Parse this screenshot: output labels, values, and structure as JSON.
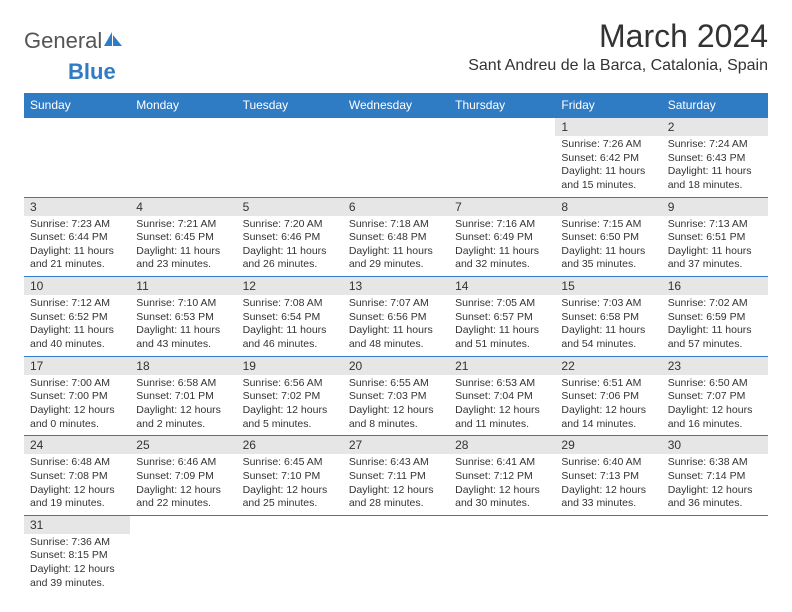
{
  "brand": {
    "part1": "General",
    "part2": "Blue"
  },
  "title": "March 2024",
  "location": "Sant Andreu de la Barca, Catalonia, Spain",
  "colors": {
    "header_bg": "#2f7bc4",
    "header_text": "#ffffff",
    "daynum_bg": "#e6e6e6",
    "border": "#2f7bc4",
    "text": "#333333",
    "page_bg": "#ffffff"
  },
  "weekdays": [
    "Sunday",
    "Monday",
    "Tuesday",
    "Wednesday",
    "Thursday",
    "Friday",
    "Saturday"
  ],
  "grid": [
    [
      null,
      null,
      null,
      null,
      null,
      {
        "n": "1",
        "sr": "Sunrise: 7:26 AM",
        "ss": "Sunset: 6:42 PM",
        "dl": "Daylight: 11 hours and 15 minutes."
      },
      {
        "n": "2",
        "sr": "Sunrise: 7:24 AM",
        "ss": "Sunset: 6:43 PM",
        "dl": "Daylight: 11 hours and 18 minutes."
      }
    ],
    [
      {
        "n": "3",
        "sr": "Sunrise: 7:23 AM",
        "ss": "Sunset: 6:44 PM",
        "dl": "Daylight: 11 hours and 21 minutes."
      },
      {
        "n": "4",
        "sr": "Sunrise: 7:21 AM",
        "ss": "Sunset: 6:45 PM",
        "dl": "Daylight: 11 hours and 23 minutes."
      },
      {
        "n": "5",
        "sr": "Sunrise: 7:20 AM",
        "ss": "Sunset: 6:46 PM",
        "dl": "Daylight: 11 hours and 26 minutes."
      },
      {
        "n": "6",
        "sr": "Sunrise: 7:18 AM",
        "ss": "Sunset: 6:48 PM",
        "dl": "Daylight: 11 hours and 29 minutes."
      },
      {
        "n": "7",
        "sr": "Sunrise: 7:16 AM",
        "ss": "Sunset: 6:49 PM",
        "dl": "Daylight: 11 hours and 32 minutes."
      },
      {
        "n": "8",
        "sr": "Sunrise: 7:15 AM",
        "ss": "Sunset: 6:50 PM",
        "dl": "Daylight: 11 hours and 35 minutes."
      },
      {
        "n": "9",
        "sr": "Sunrise: 7:13 AM",
        "ss": "Sunset: 6:51 PM",
        "dl": "Daylight: 11 hours and 37 minutes."
      }
    ],
    [
      {
        "n": "10",
        "sr": "Sunrise: 7:12 AM",
        "ss": "Sunset: 6:52 PM",
        "dl": "Daylight: 11 hours and 40 minutes."
      },
      {
        "n": "11",
        "sr": "Sunrise: 7:10 AM",
        "ss": "Sunset: 6:53 PM",
        "dl": "Daylight: 11 hours and 43 minutes."
      },
      {
        "n": "12",
        "sr": "Sunrise: 7:08 AM",
        "ss": "Sunset: 6:54 PM",
        "dl": "Daylight: 11 hours and 46 minutes."
      },
      {
        "n": "13",
        "sr": "Sunrise: 7:07 AM",
        "ss": "Sunset: 6:56 PM",
        "dl": "Daylight: 11 hours and 48 minutes."
      },
      {
        "n": "14",
        "sr": "Sunrise: 7:05 AM",
        "ss": "Sunset: 6:57 PM",
        "dl": "Daylight: 11 hours and 51 minutes."
      },
      {
        "n": "15",
        "sr": "Sunrise: 7:03 AM",
        "ss": "Sunset: 6:58 PM",
        "dl": "Daylight: 11 hours and 54 minutes."
      },
      {
        "n": "16",
        "sr": "Sunrise: 7:02 AM",
        "ss": "Sunset: 6:59 PM",
        "dl": "Daylight: 11 hours and 57 minutes."
      }
    ],
    [
      {
        "n": "17",
        "sr": "Sunrise: 7:00 AM",
        "ss": "Sunset: 7:00 PM",
        "dl": "Daylight: 12 hours and 0 minutes."
      },
      {
        "n": "18",
        "sr": "Sunrise: 6:58 AM",
        "ss": "Sunset: 7:01 PM",
        "dl": "Daylight: 12 hours and 2 minutes."
      },
      {
        "n": "19",
        "sr": "Sunrise: 6:56 AM",
        "ss": "Sunset: 7:02 PM",
        "dl": "Daylight: 12 hours and 5 minutes."
      },
      {
        "n": "20",
        "sr": "Sunrise: 6:55 AM",
        "ss": "Sunset: 7:03 PM",
        "dl": "Daylight: 12 hours and 8 minutes."
      },
      {
        "n": "21",
        "sr": "Sunrise: 6:53 AM",
        "ss": "Sunset: 7:04 PM",
        "dl": "Daylight: 12 hours and 11 minutes."
      },
      {
        "n": "22",
        "sr": "Sunrise: 6:51 AM",
        "ss": "Sunset: 7:06 PM",
        "dl": "Daylight: 12 hours and 14 minutes."
      },
      {
        "n": "23",
        "sr": "Sunrise: 6:50 AM",
        "ss": "Sunset: 7:07 PM",
        "dl": "Daylight: 12 hours and 16 minutes."
      }
    ],
    [
      {
        "n": "24",
        "sr": "Sunrise: 6:48 AM",
        "ss": "Sunset: 7:08 PM",
        "dl": "Daylight: 12 hours and 19 minutes."
      },
      {
        "n": "25",
        "sr": "Sunrise: 6:46 AM",
        "ss": "Sunset: 7:09 PM",
        "dl": "Daylight: 12 hours and 22 minutes."
      },
      {
        "n": "26",
        "sr": "Sunrise: 6:45 AM",
        "ss": "Sunset: 7:10 PM",
        "dl": "Daylight: 12 hours and 25 minutes."
      },
      {
        "n": "27",
        "sr": "Sunrise: 6:43 AM",
        "ss": "Sunset: 7:11 PM",
        "dl": "Daylight: 12 hours and 28 minutes."
      },
      {
        "n": "28",
        "sr": "Sunrise: 6:41 AM",
        "ss": "Sunset: 7:12 PM",
        "dl": "Daylight: 12 hours and 30 minutes."
      },
      {
        "n": "29",
        "sr": "Sunrise: 6:40 AM",
        "ss": "Sunset: 7:13 PM",
        "dl": "Daylight: 12 hours and 33 minutes."
      },
      {
        "n": "30",
        "sr": "Sunrise: 6:38 AM",
        "ss": "Sunset: 7:14 PM",
        "dl": "Daylight: 12 hours and 36 minutes."
      }
    ],
    [
      {
        "n": "31",
        "sr": "Sunrise: 7:36 AM",
        "ss": "Sunset: 8:15 PM",
        "dl": "Daylight: 12 hours and 39 minutes."
      },
      null,
      null,
      null,
      null,
      null,
      null
    ]
  ]
}
